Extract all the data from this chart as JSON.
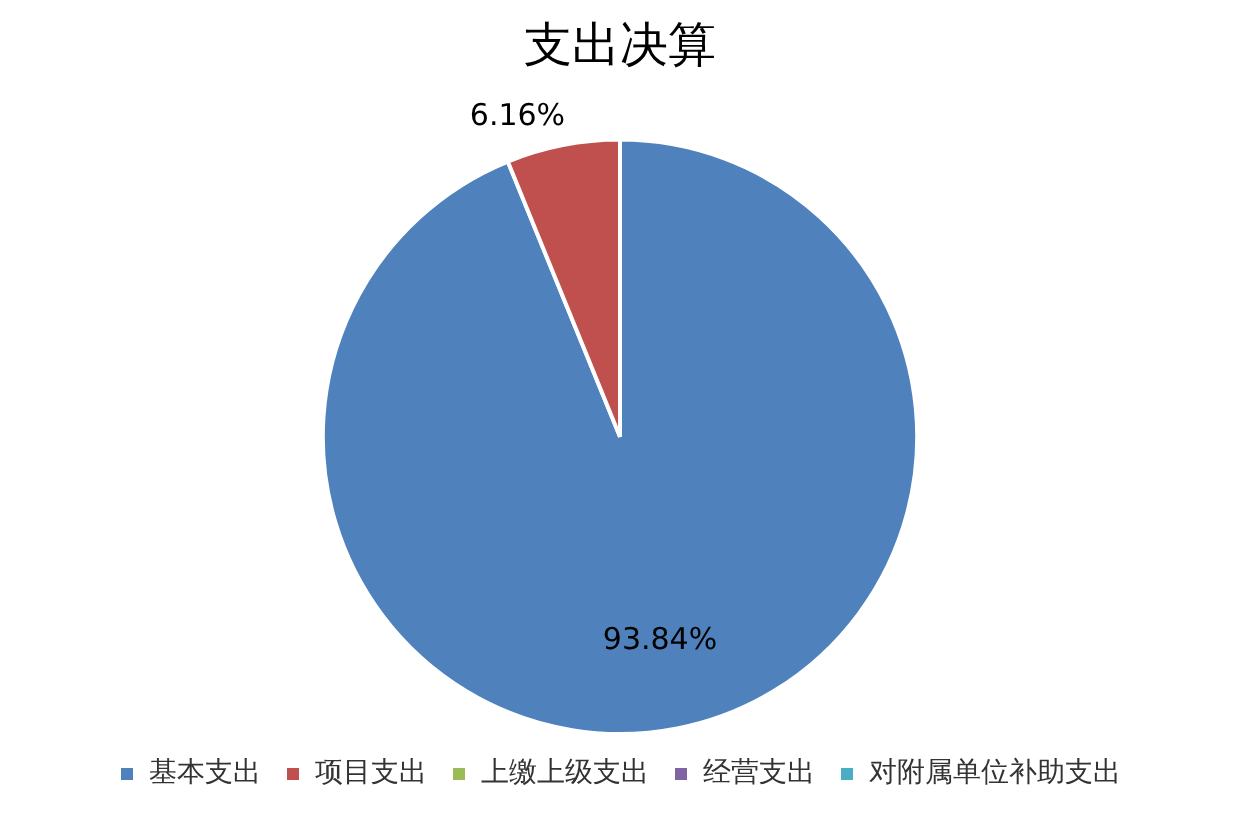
{
  "chart_data": {
    "type": "pie",
    "title": "支出决算",
    "categories": [
      "基本支出",
      "项目支出",
      "上缴上级支出",
      "经营支出",
      "对附属单位补助支出"
    ],
    "values": [
      93.84,
      6.16,
      0,
      0,
      0
    ],
    "colors": [
      "#4f81bd",
      "#c0504d",
      "#9bbb59",
      "#8064a2",
      "#4bacc6"
    ],
    "value_labels": [
      "93.84%",
      "6.16%",
      null,
      null,
      null
    ],
    "legend": "bottom"
  }
}
